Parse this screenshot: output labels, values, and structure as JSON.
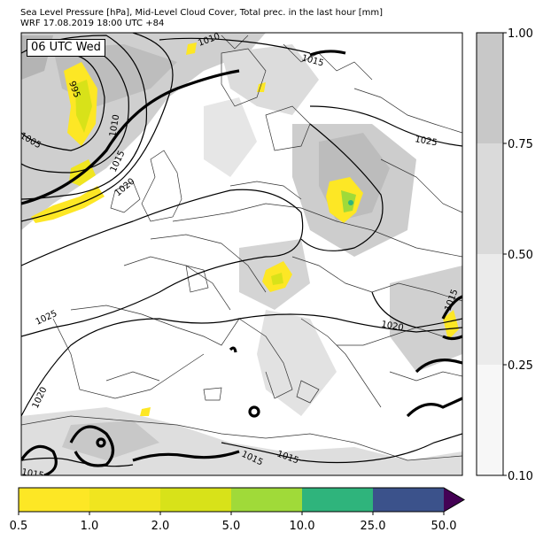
{
  "title": {
    "line1": "Sea Level Pressure [hPa], Mid-Level Cloud Cover, Total prec. in the last hour [mm]",
    "line2": "WRF 17.08.2019 18:00 UTC +84"
  },
  "time_stamp": "06 UTC Wed",
  "isobar_labels": [
    "1010",
    "1015",
    "995",
    "1010",
    "1005",
    "1015",
    "1020",
    "1025",
    "1025",
    "1020",
    "1015",
    "1020",
    "1015",
    "1015",
    "1015"
  ],
  "cloud_colorbar": {
    "ticks": [
      "1.00",
      "0.75",
      "0.50",
      "0.25",
      "0.10"
    ],
    "colors": [
      "#c8c8c8",
      "#dadada",
      "#ebebeb",
      "#f7f7f7"
    ]
  },
  "precip_colorbar": {
    "ticks": [
      "0.5",
      "1.0",
      "2.0",
      "5.0",
      "10.0",
      "25.0",
      "50.0"
    ],
    "colors": [
      "#fde725",
      "#f0e51f",
      "#d8e219",
      "#a0da39",
      "#2fb47c",
      "#3b528b",
      "#440154"
    ]
  }
}
